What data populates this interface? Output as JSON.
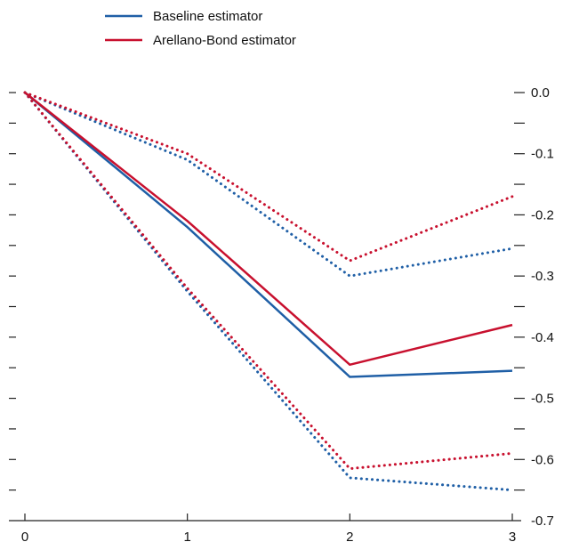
{
  "chart_data": {
    "type": "line",
    "title": "",
    "xlabel": "",
    "ylabel": "",
    "x": [
      0,
      1,
      2,
      3
    ],
    "x_ticks": [
      "0",
      "1",
      "2",
      "3"
    ],
    "ylim": [
      -0.7,
      0.0
    ],
    "y_ticks": [
      "0.0",
      "-0.1",
      "-0.2",
      "-0.3",
      "-0.4",
      "-0.5",
      "-0.6",
      "-0.7"
    ],
    "y_tick_values": [
      0.0,
      -0.1,
      -0.2,
      -0.3,
      -0.4,
      -0.5,
      -0.6,
      -0.7
    ],
    "grid": false,
    "legend_position": "top-left",
    "legend": [
      {
        "label": "Baseline estimator",
        "color": "#1f5fa6"
      },
      {
        "label": "Arellano-Bond estimator",
        "color": "#c8102e"
      }
    ],
    "series": [
      {
        "name": "Baseline estimator",
        "color": "#1f5fa6",
        "style": "solid",
        "values": [
          0.0,
          -0.22,
          -0.465,
          -0.455
        ]
      },
      {
        "name": "Arellano-Bond estimator",
        "color": "#c8102e",
        "style": "solid",
        "values": [
          0.0,
          -0.21,
          -0.445,
          -0.38
        ]
      },
      {
        "color": "#1f5fa6",
        "style": "dotted",
        "values": [
          0.0,
          -0.11,
          -0.3,
          -0.255
        ]
      },
      {
        "color": "#1f5fa6",
        "style": "dotted",
        "values": [
          0.0,
          -0.325,
          -0.63,
          -0.65
        ]
      },
      {
        "color": "#c8102e",
        "style": "dotted",
        "values": [
          0.0,
          -0.1,
          -0.275,
          -0.17
        ]
      },
      {
        "color": "#c8102e",
        "style": "dotted",
        "values": [
          0.0,
          -0.32,
          -0.615,
          -0.59
        ]
      }
    ]
  }
}
